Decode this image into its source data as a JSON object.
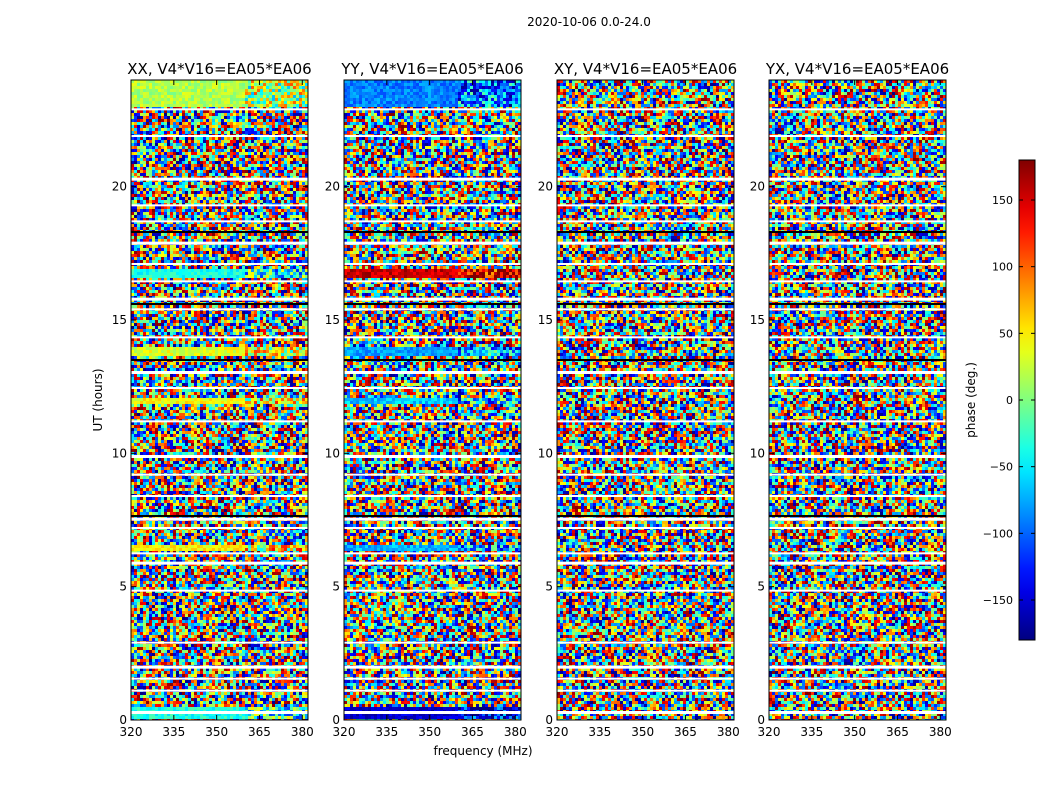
{
  "chart_data": {
    "type": "heatmap",
    "title": "2020-10-06 0.0-24.0",
    "xlabel": "frequency (MHz)",
    "ylabel": "UT (hours)",
    "xlim": [
      320,
      382
    ],
    "ylim": [
      0,
      24
    ],
    "xticks": [
      "320",
      "335",
      "350",
      "365",
      "380"
    ],
    "yticks": [
      "0",
      "5",
      "10",
      "15",
      "20"
    ],
    "colorbar": {
      "label": "phase (deg.)",
      "range": [
        -180,
        180
      ],
      "ticks": [
        "−150",
        "−100",
        "−50",
        "0",
        "50",
        "100",
        "150"
      ],
      "colormap": "jet"
    },
    "panels": [
      {
        "title": "XX, V4*V16=EA05*EA06"
      },
      {
        "title": "YY, V4*V16=EA05*EA06"
      },
      {
        "title": "XY, V4*V16=EA05*EA06"
      },
      {
        "title": "YX, V4*V16=EA05*EA06"
      }
    ]
  }
}
